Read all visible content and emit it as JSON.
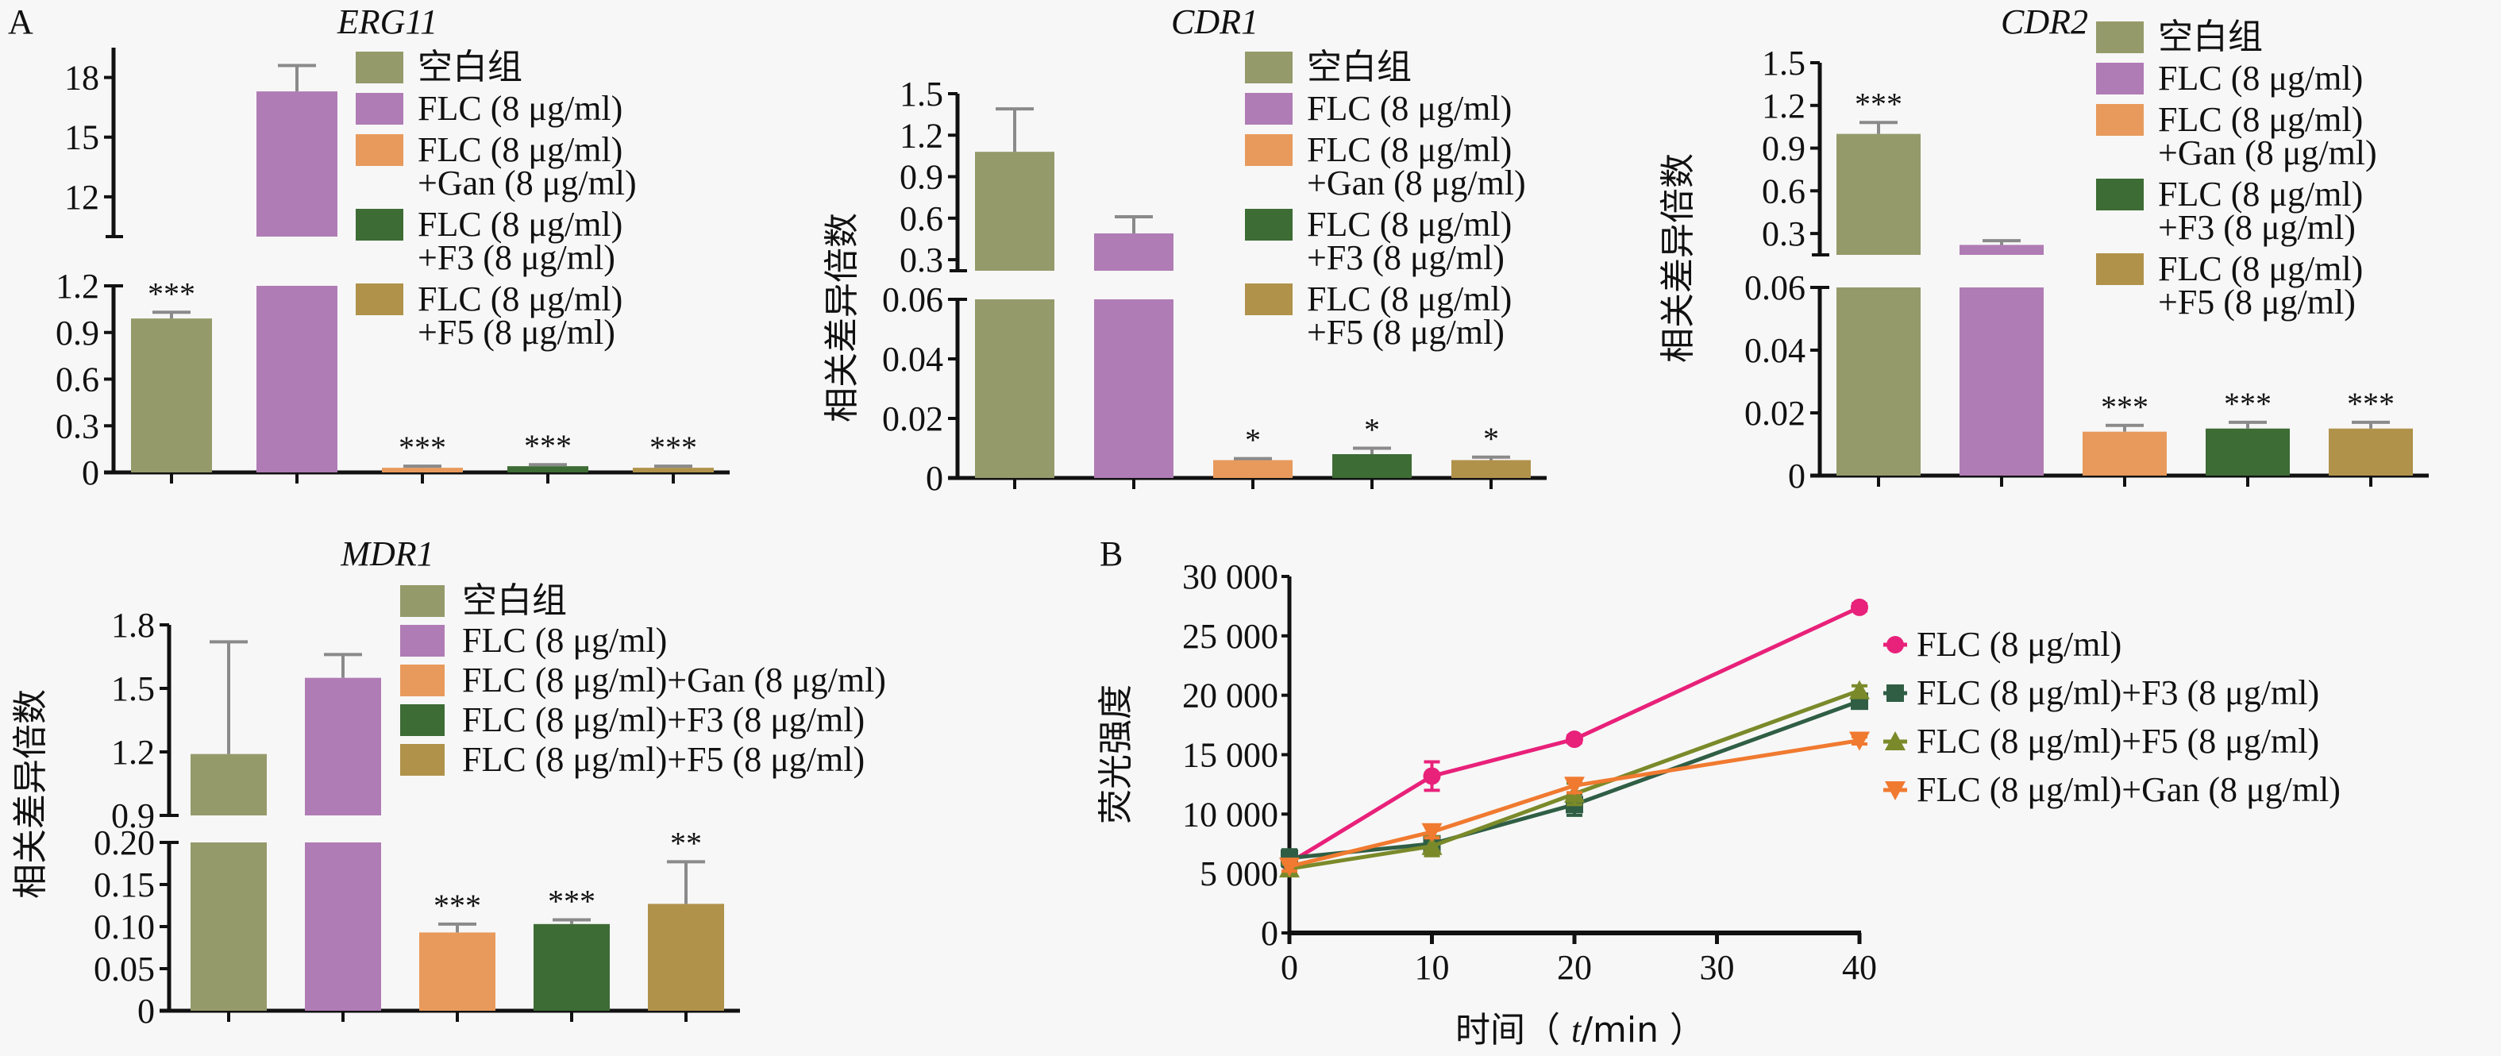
{
  "figure": {
    "panel_labels": [
      "A",
      "B"
    ]
  },
  "colors": {
    "blank": "#959a6a",
    "flc": "#b07cb5",
    "gan": "#e89a5c",
    "f3": "#3d6c35",
    "f5": "#b0924a",
    "line_flc": "#e8217a",
    "line_f3": "#2f5e45",
    "line_f5": "#7a8a2a",
    "line_gan": "#f07a30"
  },
  "legend_bar": {
    "stacked": [
      "空白组",
      "FLC (8 μg/ml)",
      "FLC (8 μg/ml)",
      "+Gan (8 μg/ml)",
      "FLC (8 μg/ml)",
      "+F3 (8 μg/ml)",
      "FLC (8 μg/ml)",
      "+F5 (8 μg/ml)"
    ],
    "single_line": [
      "空白组",
      "FLC (8 μg/ml)",
      "FLC (8 μg/ml)+Gan (8 μg/ml)",
      "FLC (8 μg/ml)+F3 (8 μg/ml)",
      "FLC (8 μg/ml)+F5 (8 μg/ml)"
    ]
  },
  "chart_data": [
    {
      "type": "bar",
      "title": "ERG11",
      "ylabel": "",
      "categories": [
        "空白组",
        "FLC (8 μg/ml)",
        "FLC (8 μg/ml)+Gan (8 μg/ml)",
        "FLC (8 μg/ml)+F3 (8 μg/ml)",
        "FLC (8 μg/ml)+F5 (8 μg/ml)"
      ],
      "values": [
        0.99,
        17.3,
        0.03,
        0.04,
        0.03
      ],
      "errors": [
        0.04,
        1.3,
        0.01,
        0.01,
        0.01
      ],
      "significance": [
        "***",
        "",
        "***",
        "***",
        "***"
      ],
      "broken_axis": {
        "lower": {
          "range": [
            0,
            1.2
          ],
          "ticks": [
            "0",
            "0.3",
            "0.6",
            "0.9",
            "1.2"
          ],
          "tick_values": [
            0,
            0.3,
            0.6,
            0.9,
            1.2
          ]
        },
        "upper": {
          "range": [
            10,
            19.5
          ],
          "ticks": [
            "12",
            "15",
            "18"
          ],
          "tick_values": [
            12,
            15,
            18
          ]
        }
      }
    },
    {
      "type": "bar",
      "title": "CDR1",
      "ylabel": "相关差异倍数",
      "categories": [
        "空白组",
        "FLC (8 μg/ml)",
        "FLC (8 μg/ml)+Gan (8 μg/ml)",
        "FLC (8 μg/ml)+F3 (8 μg/ml)",
        "FLC (8 μg/ml)+F5 (8 μg/ml)"
      ],
      "values": [
        1.08,
        0.49,
        0.006,
        0.008,
        0.006
      ],
      "errors": [
        0.31,
        0.12,
        0.0005,
        0.002,
        0.001
      ],
      "significance": [
        "",
        "",
        "*",
        "*",
        "*"
      ],
      "broken_axis": {
        "lower": {
          "range": [
            0,
            0.06
          ],
          "ticks": [
            "0",
            "0.02",
            "0.04",
            "0.06"
          ],
          "tick_values": [
            0,
            0.02,
            0.04,
            0.06
          ]
        },
        "upper": {
          "range": [
            0.22,
            1.5
          ],
          "ticks": [
            "0.3",
            "0.6",
            "0.9",
            "1.2",
            "1.5"
          ],
          "tick_values": [
            0.3,
            0.6,
            0.9,
            1.2,
            1.5
          ]
        }
      }
    },
    {
      "type": "bar",
      "title": "CDR2",
      "ylabel": "相关差异倍数",
      "categories": [
        "空白组",
        "FLC (8 μg/ml)",
        "FLC (8 μg/ml)+Gan (8 μg/ml)",
        "FLC (8 μg/ml)+F3 (8 μg/ml)",
        "FLC (8 μg/ml)+F5 (8 μg/ml)"
      ],
      "values": [
        1.0,
        0.22,
        0.014,
        0.015,
        0.015
      ],
      "errors": [
        0.08,
        0.03,
        0.002,
        0.002,
        0.002
      ],
      "significance": [
        "***",
        "",
        "***",
        "***",
        "***"
      ],
      "broken_axis": {
        "lower": {
          "range": [
            0,
            0.06
          ],
          "ticks": [
            "0",
            "0.02",
            "0.04",
            "0.06"
          ],
          "tick_values": [
            0,
            0.02,
            0.04,
            0.06
          ]
        },
        "upper": {
          "range": [
            0.15,
            1.5
          ],
          "ticks": [
            "0.3",
            "0.6",
            "0.9",
            "1.2",
            "1.5"
          ],
          "tick_values": [
            0.3,
            0.6,
            0.9,
            1.2,
            1.5
          ]
        }
      }
    },
    {
      "type": "bar",
      "title": "MDR1",
      "ylabel": "相关差异倍数",
      "categories": [
        "空白组",
        "FLC (8 μg/ml)",
        "FLC (8 μg/ml)+Gan (8 μg/ml)",
        "FLC (8 μg/ml)+F3 (8 μg/ml)",
        "FLC (8 μg/ml)+F5 (8 μg/ml)"
      ],
      "values": [
        1.19,
        1.55,
        0.093,
        0.103,
        0.127
      ],
      "errors": [
        0.53,
        0.11,
        0.01,
        0.005,
        0.05
      ],
      "significance": [
        "",
        "",
        "***",
        "***",
        "**"
      ],
      "broken_axis": {
        "lower": {
          "range": [
            0,
            0.2
          ],
          "ticks": [
            "0",
            "0.05",
            "0.10",
            "0.15",
            "0.20"
          ],
          "tick_values": [
            0,
            0.05,
            0.1,
            0.15,
            0.2
          ]
        },
        "upper": {
          "range": [
            0.9,
            1.8
          ],
          "ticks": [
            "0.9",
            "1.2",
            "1.5",
            "1.8"
          ],
          "tick_values": [
            0.9,
            1.2,
            1.5,
            1.8
          ]
        }
      }
    },
    {
      "type": "line",
      "title": "",
      "xlabel": "时间（ t/min ）",
      "xlabel_parts": {
        "prefix": "时间（ ",
        "italic": "t",
        "suffix": "/min ）"
      },
      "ylabel": "荧光强度",
      "x": [
        0,
        10,
        20,
        40
      ],
      "xlim": [
        0,
        40
      ],
      "ylim": [
        0,
        30000
      ],
      "xticks": [
        "0",
        "10",
        "20",
        "30",
        "40"
      ],
      "xtick_values": [
        0,
        10,
        20,
        30,
        40
      ],
      "yticks": [
        "0",
        "5 000",
        "10 000",
        "15 000",
        "20 000",
        "25 000",
        "30 000"
      ],
      "ytick_values": [
        0,
        5000,
        10000,
        15000,
        20000,
        25000,
        30000
      ],
      "legend_position": "right",
      "series": [
        {
          "name": "FLC (8 μg/ml)",
          "marker": "circle",
          "values": [
            5900,
            13200,
            16300,
            27400
          ],
          "errors": [
            300,
            1200,
            300,
            300
          ]
        },
        {
          "name": "FLC (8 μg/ml)+F3 (8 μg/ml)",
          "marker": "square",
          "values": [
            6300,
            7500,
            10800,
            19500
          ],
          "errors": [
            700,
            500,
            900,
            400
          ]
        },
        {
          "name": "FLC (8 μg/ml)+F5 (8 μg/ml)",
          "marker": "triangle-up",
          "values": [
            5400,
            7300,
            11700,
            20400
          ],
          "errors": [
            400,
            800,
            900,
            400
          ]
        },
        {
          "name": "FLC (8 μg/ml)+Gan (8 μg/ml)",
          "marker": "triangle-down",
          "values": [
            5600,
            8500,
            12400,
            16200
          ],
          "errors": [
            400,
            500,
            600,
            300
          ]
        }
      ]
    }
  ]
}
